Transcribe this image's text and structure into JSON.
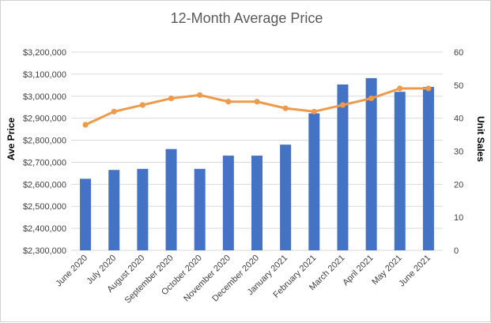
{
  "chart_data": {
    "type": "bar+line",
    "title": "12-Month Average Price",
    "categories": [
      "June 2020",
      "July 2020",
      "August 2020",
      "September 2020",
      "October 2020",
      "November 2020",
      "December 2020",
      "January 2021",
      "February 2021",
      "March 2021",
      "April 2021",
      "May 2021",
      "June 2021"
    ],
    "series": [
      {
        "name": "",
        "type": "bar",
        "axis": "left",
        "color": "#4472c4",
        "values": [
          2625000,
          2665000,
          2670000,
          2760000,
          2670000,
          2730000,
          2730000,
          2780000,
          2922000,
          3053000,
          3082000,
          3020000,
          3042000
        ]
      },
      {
        "name": "",
        "type": "line",
        "axis": "right",
        "color": "#ed9b4a",
        "values": [
          38,
          42,
          44,
          46,
          47,
          45,
          45,
          43,
          42,
          44,
          46,
          49,
          49
        ]
      }
    ],
    "ylabel_left": "Ave Price",
    "ylabel_right": "Unit Sales",
    "ylim_left": [
      2300000,
      3200000
    ],
    "ylim_right": [
      0,
      60
    ],
    "left_ticks": [
      "$2,300,000",
      "$2,400,000",
      "$2,500,000",
      "$2,600,000",
      "$2,700,000",
      "$2,800,000",
      "$2,900,000",
      "$3,000,000",
      "$3,100,000",
      "$3,200,000"
    ],
    "right_ticks": [
      "0",
      "10",
      "20",
      "30",
      "40",
      "50",
      "60"
    ],
    "grid": true,
    "legend": "none"
  }
}
